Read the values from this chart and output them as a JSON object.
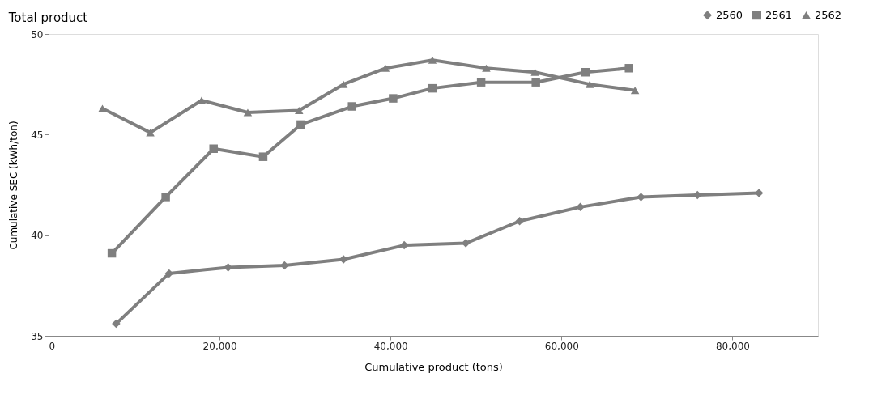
{
  "chart_data": {
    "type": "line",
    "title": "Total product",
    "xlabel": "Cumulative product (tons)",
    "ylabel": "Cumulative SEC (kWh/ton)",
    "xlim": [
      0,
      90000
    ],
    "xticks": [
      {
        "value": 0,
        "label": "0"
      },
      {
        "value": 20000,
        "label": "20,000"
      },
      {
        "value": 40000,
        "label": "40,000"
      },
      {
        "value": 60000,
        "label": "60,000"
      },
      {
        "value": 80000,
        "label": "80,000"
      }
    ],
    "ylim": [
      35,
      50
    ],
    "yticks": [
      35,
      40,
      45,
      50
    ],
    "grid": false,
    "legend": "top right",
    "line_style": "solid",
    "series": [
      {
        "name": "2560",
        "color": "#7f7f7f",
        "marker": "diamond",
        "x": [
          7900,
          14100,
          21000,
          27600,
          34500,
          41600,
          48800,
          55100,
          62200,
          69300,
          75900,
          83100
        ],
        "values": [
          35.6,
          38.1,
          38.4,
          38.5,
          38.8,
          39.5,
          39.6,
          40.7,
          41.4,
          41.9,
          42.0,
          42.1
        ]
      },
      {
        "name": "2561",
        "color": "#7f7f7f",
        "marker": "square",
        "x": [
          7400,
          13700,
          19300,
          25100,
          29500,
          35500,
          40300,
          44900,
          50600,
          57000,
          62800,
          67900
        ],
        "values": [
          39.1,
          41.9,
          44.3,
          43.9,
          45.5,
          46.4,
          46.8,
          47.3,
          47.6,
          47.6,
          48.1,
          48.3
        ]
      },
      {
        "name": "2562",
        "color": "#7f7f7f",
        "marker": "triangle",
        "x": [
          6300,
          11900,
          17900,
          23300,
          29300,
          34500,
          39400,
          44900,
          51200,
          56900,
          63300,
          68600
        ],
        "values": [
          46.3,
          45.1,
          46.7,
          46.1,
          46.2,
          47.5,
          48.3,
          48.7,
          48.3,
          48.1,
          47.5,
          47.2
        ]
      }
    ]
  }
}
